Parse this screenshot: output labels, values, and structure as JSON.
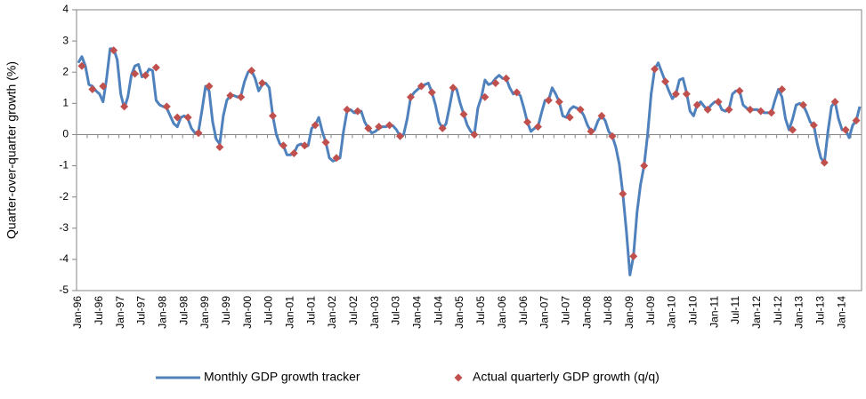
{
  "chart_data": {
    "type": "line",
    "y_label": "Quarter-over-quarter growth (%)",
    "categories": [
      "Jan-96",
      null,
      null,
      null,
      null,
      null,
      "Jul-96",
      null,
      null,
      null,
      null,
      null,
      "Jan-97",
      null,
      null,
      null,
      null,
      null,
      "Jul-97",
      null,
      null,
      null,
      null,
      null,
      "Jan-98",
      null,
      null,
      null,
      null,
      null,
      "Jul-98",
      null,
      null,
      null,
      null,
      null,
      "Jan-99",
      null,
      null,
      null,
      null,
      null,
      "Jul-99",
      null,
      null,
      null,
      null,
      null,
      "Jan-00",
      null,
      null,
      null,
      null,
      null,
      "Jul-00",
      null,
      null,
      null,
      null,
      null,
      "Jan-01",
      null,
      null,
      null,
      null,
      null,
      "Jul-01",
      null,
      null,
      null,
      null,
      null,
      "Jan-02",
      null,
      null,
      null,
      null,
      null,
      "Jul-02",
      null,
      null,
      null,
      null,
      null,
      "Jan-03",
      null,
      null,
      null,
      null,
      null,
      "Jul-03",
      null,
      null,
      null,
      null,
      null,
      "Jan-04",
      null,
      null,
      null,
      null,
      null,
      "Jul-04",
      null,
      null,
      null,
      null,
      null,
      "Jan-05",
      null,
      null,
      null,
      null,
      null,
      "Jul-05",
      null,
      null,
      null,
      null,
      null,
      "Jan-06",
      null,
      null,
      null,
      null,
      null,
      "Jul-06",
      null,
      null,
      null,
      null,
      null,
      "Jan-07",
      null,
      null,
      null,
      null,
      null,
      "Jul-07",
      null,
      null,
      null,
      null,
      null,
      "Jan-08",
      null,
      null,
      null,
      null,
      null,
      "Jul-08",
      null,
      null,
      null,
      null,
      null,
      "Jan-09",
      null,
      null,
      null,
      null,
      null,
      "Jul-09",
      null,
      null,
      null,
      null,
      null,
      "Jan-10",
      null,
      null,
      null,
      null,
      null,
      "Jul-10",
      null,
      null,
      null,
      null,
      null,
      "Jan-11",
      null,
      null,
      null,
      null,
      null,
      "Jul-11",
      null,
      null,
      null,
      null,
      null,
      "Jan-12",
      null,
      null,
      null,
      null,
      null,
      "Jul-12",
      null,
      null,
      null,
      null,
      null,
      "Jan-13",
      null,
      null,
      null,
      null,
      null,
      "Jul-13",
      null,
      null,
      null,
      null,
      null,
      "Jan-14",
      null,
      null,
      null,
      null,
      null
    ],
    "series": [
      {
        "name": "Monthly GDP growth tracker",
        "color": "#4f81bd",
        "marker": "line",
        "values": [
          2.3,
          2.5,
          2.2,
          1.6,
          1.55,
          1.4,
          1.3,
          1.05,
          1.8,
          2.75,
          2.75,
          2.4,
          1.3,
          0.85,
          1.2,
          1.9,
          2.2,
          2.25,
          1.85,
          1.9,
          2.1,
          2.05,
          1.1,
          0.95,
          0.9,
          0.85,
          0.6,
          0.35,
          0.25,
          0.55,
          0.6,
          0.5,
          0.2,
          0.05,
          0.1,
          0.8,
          1.55,
          1.4,
          0.4,
          -0.15,
          -0.3,
          0.6,
          1.1,
          1.25,
          1.25,
          1.2,
          1.25,
          1.7,
          2.0,
          2.05,
          1.8,
          1.4,
          1.6,
          1.65,
          1.5,
          0.6,
          0.0,
          -0.3,
          -0.35,
          -0.65,
          -0.65,
          -0.6,
          -0.35,
          -0.3,
          -0.4,
          -0.35,
          0.2,
          0.3,
          0.55,
          0.1,
          -0.25,
          -0.75,
          -0.85,
          -0.8,
          -0.75,
          0.1,
          0.75,
          0.8,
          0.7,
          0.7,
          0.75,
          0.4,
          0.2,
          0.05,
          0.1,
          0.2,
          0.25,
          0.25,
          0.3,
          0.28,
          0.15,
          -0.05,
          0.0,
          0.5,
          1.2,
          1.35,
          1.45,
          1.55,
          1.6,
          1.65,
          1.35,
          0.95,
          0.4,
          0.2,
          0.35,
          0.9,
          1.5,
          1.45,
          1.0,
          0.65,
          0.3,
          0.1,
          0.0,
          0.85,
          1.2,
          1.75,
          1.6,
          1.65,
          1.8,
          1.9,
          1.8,
          1.8,
          1.5,
          1.3,
          1.35,
          1.25,
          0.85,
          0.4,
          0.1,
          0.2,
          0.25,
          0.7,
          1.1,
          1.1,
          1.5,
          1.3,
          1.05,
          0.6,
          0.55,
          0.8,
          0.9,
          0.85,
          0.8,
          0.6,
          0.3,
          0.1,
          0.15,
          0.45,
          0.6,
          0.45,
          0.1,
          -0.05,
          -0.4,
          -0.95,
          -1.9,
          -3.1,
          -4.5,
          -3.9,
          -2.5,
          -1.6,
          -1.0,
          0.0,
          1.3,
          2.1,
          2.3,
          2.0,
          1.7,
          1.4,
          1.15,
          1.3,
          1.75,
          1.8,
          1.35,
          0.75,
          0.6,
          0.95,
          1.05,
          0.9,
          0.8,
          0.95,
          1.05,
          1.05,
          0.8,
          0.75,
          0.8,
          1.3,
          1.4,
          1.4,
          0.95,
          0.85,
          0.8,
          0.8,
          0.8,
          0.75,
          0.7,
          0.7,
          0.7,
          1.1,
          1.45,
          1.2,
          0.5,
          0.15,
          0.5,
          0.95,
          1.0,
          0.95,
          0.7,
          0.4,
          0.3,
          -0.3,
          -0.75,
          -0.9,
          0.1,
          0.9,
          1.05,
          0.5,
          0.15,
          0.15,
          -0.1,
          0.3,
          0.45,
          0.9
        ]
      },
      {
        "name": "Actual quarterly GDP growth (q/q)",
        "color": "#c0504d",
        "marker": "diamond",
        "values": [
          null,
          2.2,
          null,
          null,
          1.45,
          null,
          null,
          1.55,
          null,
          null,
          2.7,
          null,
          null,
          0.9,
          null,
          null,
          1.95,
          null,
          null,
          1.9,
          null,
          null,
          2.15,
          null,
          null,
          0.9,
          null,
          null,
          0.55,
          null,
          null,
          0.55,
          null,
          null,
          0.05,
          null,
          null,
          1.55,
          null,
          null,
          -0.4,
          null,
          null,
          1.25,
          null,
          null,
          1.2,
          null,
          null,
          2.05,
          null,
          null,
          1.65,
          null,
          null,
          0.6,
          null,
          null,
          -0.35,
          null,
          null,
          -0.6,
          null,
          null,
          -0.35,
          null,
          null,
          0.3,
          null,
          null,
          -0.25,
          null,
          null,
          -0.75,
          null,
          null,
          0.8,
          null,
          null,
          0.75,
          null,
          null,
          0.2,
          null,
          null,
          0.25,
          null,
          null,
          0.3,
          null,
          null,
          -0.05,
          null,
          null,
          1.2,
          null,
          null,
          1.55,
          null,
          null,
          1.35,
          null,
          null,
          0.2,
          null,
          null,
          1.5,
          null,
          null,
          0.65,
          null,
          null,
          0.0,
          null,
          null,
          1.2,
          null,
          null,
          1.65,
          null,
          null,
          1.8,
          null,
          null,
          1.35,
          null,
          null,
          0.4,
          null,
          null,
          0.25,
          null,
          null,
          1.1,
          null,
          null,
          1.05,
          null,
          null,
          0.55,
          null,
          null,
          0.8,
          null,
          null,
          0.1,
          null,
          null,
          0.6,
          null,
          null,
          -0.05,
          null,
          null,
          -1.9,
          null,
          null,
          -3.9,
          null,
          null,
          -1.0,
          null,
          null,
          2.1,
          null,
          null,
          1.7,
          null,
          null,
          1.3,
          null,
          null,
          1.3,
          null,
          null,
          0.95,
          null,
          null,
          0.8,
          null,
          null,
          1.05,
          null,
          null,
          0.8,
          null,
          null,
          1.4,
          null,
          null,
          0.8,
          null,
          null,
          0.75,
          null,
          null,
          0.7,
          null,
          null,
          1.45,
          null,
          null,
          0.15,
          null,
          null,
          0.95,
          null,
          null,
          0.3,
          null,
          null,
          -0.9,
          null,
          null,
          1.05,
          null,
          null,
          0.15,
          null,
          null,
          0.45,
          null
        ]
      }
    ],
    "ylim": [
      -5,
      4
    ],
    "yticks": [
      -5,
      -4,
      -3,
      -2,
      -1,
      0,
      1,
      2,
      3,
      4
    ],
    "grid": false,
    "legend": "bottom"
  }
}
